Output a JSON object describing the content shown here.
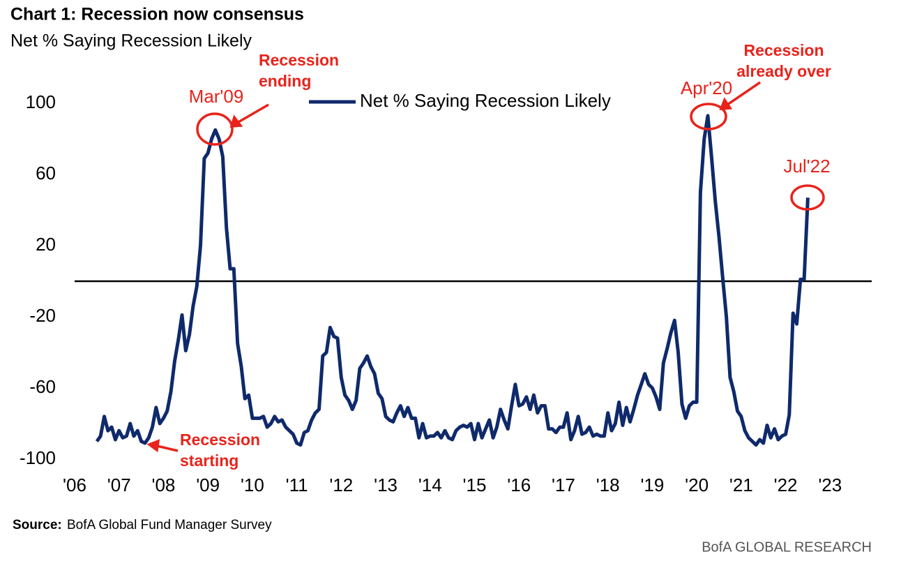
{
  "chart_data": {
    "type": "line",
    "title": "Chart 1: Recession now consensus",
    "subtitle": "Net % Saying Recession Likely",
    "source_label": "Source:",
    "source": "BofA Global Fund Manager Survey",
    "footer": "BofA GLOBAL RESEARCH",
    "xlim": [
      2006,
      2024
    ],
    "ylim": [
      -100,
      100
    ],
    "hline": 0,
    "xticks": [
      {
        "value": 2006,
        "label": "'06"
      },
      {
        "value": 2007,
        "label": "'07"
      },
      {
        "value": 2008,
        "label": "'08"
      },
      {
        "value": 2009,
        "label": "'09"
      },
      {
        "value": 2010,
        "label": "'10"
      },
      {
        "value": 2011,
        "label": "'11"
      },
      {
        "value": 2012,
        "label": "'12"
      },
      {
        "value": 2013,
        "label": "'13"
      },
      {
        "value": 2014,
        "label": "'14"
      },
      {
        "value": 2015,
        "label": "'15"
      },
      {
        "value": 2016,
        "label": "'16"
      },
      {
        "value": 2017,
        "label": "'17"
      },
      {
        "value": 2018,
        "label": "'18"
      },
      {
        "value": 2019,
        "label": "'19"
      },
      {
        "value": 2020,
        "label": "'20"
      },
      {
        "value": 2021,
        "label": "'21"
      },
      {
        "value": 2022,
        "label": "'22"
      },
      {
        "value": 2023,
        "label": "'23"
      }
    ],
    "yticks": [
      -100,
      -60,
      -20,
      20,
      60,
      100
    ],
    "x": [
      2006.5,
      2006.583,
      2006.667,
      2006.75,
      2006.833,
      2006.917,
      2007,
      2007.083,
      2007.167,
      2007.25,
      2007.333,
      2007.417,
      2007.5,
      2007.583,
      2007.667,
      2007.75,
      2007.833,
      2007.917,
      2008,
      2008.083,
      2008.167,
      2008.25,
      2008.333,
      2008.417,
      2008.5,
      2008.583,
      2008.667,
      2008.75,
      2008.833,
      2008.917,
      2009,
      2009.083,
      2009.167,
      2009.25,
      2009.333,
      2009.417,
      2009.5,
      2009.583,
      2009.667,
      2009.75,
      2009.833,
      2009.917,
      2010,
      2010.083,
      2010.167,
      2010.25,
      2010.333,
      2010.417,
      2010.5,
      2010.583,
      2010.667,
      2010.75,
      2010.833,
      2010.917,
      2011,
      2011.083,
      2011.167,
      2011.25,
      2011.333,
      2011.417,
      2011.5,
      2011.583,
      2011.667,
      2011.75,
      2011.833,
      2011.917,
      2012,
      2012.083,
      2012.167,
      2012.25,
      2012.333,
      2012.417,
      2012.5,
      2012.583,
      2012.667,
      2012.75,
      2012.833,
      2012.917,
      2013,
      2013.083,
      2013.167,
      2013.25,
      2013.333,
      2013.417,
      2013.5,
      2013.583,
      2013.667,
      2013.75,
      2013.833,
      2013.917,
      2014,
      2014.083,
      2014.167,
      2014.25,
      2014.333,
      2014.417,
      2014.5,
      2014.583,
      2014.667,
      2014.75,
      2014.833,
      2014.917,
      2015,
      2015.083,
      2015.167,
      2015.25,
      2015.333,
      2015.417,
      2015.5,
      2015.583,
      2015.667,
      2015.75,
      2015.833,
      2015.917,
      2016,
      2016.083,
      2016.167,
      2016.25,
      2016.333,
      2016.417,
      2016.5,
      2016.583,
      2016.667,
      2016.75,
      2016.833,
      2016.917,
      2017,
      2017.083,
      2017.167,
      2017.25,
      2017.333,
      2017.417,
      2017.5,
      2017.583,
      2017.667,
      2017.75,
      2017.833,
      2017.917,
      2018,
      2018.083,
      2018.167,
      2018.25,
      2018.333,
      2018.417,
      2018.5,
      2018.583,
      2018.667,
      2018.75,
      2018.833,
      2018.917,
      2019,
      2019.083,
      2019.167,
      2019.25,
      2019.333,
      2019.417,
      2019.5,
      2019.583,
      2019.667,
      2019.75,
      2019.833,
      2019.917,
      2020,
      2020.083,
      2020.167,
      2020.25,
      2020.333,
      2020.417,
      2020.5,
      2020.583,
      2020.667,
      2020.75,
      2020.833,
      2020.917,
      2021,
      2021.083,
      2021.167,
      2021.25,
      2021.333,
      2021.417,
      2021.5,
      2021.583,
      2021.667,
      2021.75,
      2021.833,
      2021.917,
      2022,
      2022.083,
      2022.167,
      2022.25,
      2022.333,
      2022.417,
      2022.5
    ],
    "series": [
      {
        "name": "Net % Saying Recession Likely",
        "color": "#0f2a6b",
        "values": [
          -90,
          -87,
          -76,
          -84,
          -82,
          -89,
          -84,
          -88,
          -87,
          -80,
          -87,
          -84,
          -90,
          -91,
          -88,
          -82,
          -71,
          -80,
          -77,
          -73,
          -62,
          -45,
          -33,
          -19,
          -39,
          -30,
          -14,
          -3,
          20,
          69,
          72,
          80,
          85,
          80,
          70,
          30,
          7,
          7,
          -35,
          -48,
          -66,
          -64,
          -77,
          -77,
          -77,
          -76,
          -82,
          -80,
          -76,
          -79,
          -78,
          -82,
          -84,
          -86,
          -91,
          -92,
          -85,
          -84,
          -78,
          -74,
          -72,
          -42,
          -40,
          -26,
          -31,
          -32,
          -54,
          -64,
          -67,
          -72,
          -67,
          -49,
          -46,
          -42,
          -48,
          -52,
          -63,
          -66,
          -76,
          -78,
          -79,
          -74,
          -70,
          -76,
          -71,
          -77,
          -77,
          -88,
          -80,
          -88,
          -87,
          -87,
          -85,
          -88,
          -84,
          -88,
          -89,
          -84,
          -82,
          -81,
          -82,
          -80,
          -89,
          -80,
          -88,
          -83,
          -78,
          -88,
          -82,
          -72,
          -78,
          -83,
          -70,
          -58,
          -70,
          -69,
          -65,
          -72,
          -64,
          -74,
          -70,
          -70,
          -83,
          -83,
          -85,
          -82,
          -82,
          -74,
          -89,
          -84,
          -76,
          -86,
          -85,
          -82,
          -87,
          -86,
          -87,
          -87,
          -74,
          -84,
          -80,
          -68,
          -81,
          -71,
          -79,
          -72,
          -64,
          -58,
          -52,
          -58,
          -60,
          -65,
          -72,
          -46,
          -38,
          -29,
          -22,
          -40,
          -69,
          -77,
          -70,
          -68,
          -68,
          50,
          80,
          93,
          70,
          45,
          25,
          2,
          -20,
          -54,
          -62,
          -73,
          -76,
          -84,
          -88,
          -90,
          -92,
          -89,
          -91,
          -81,
          -88,
          -83,
          -89,
          -87,
          -86,
          -75,
          -18,
          -24,
          1,
          1,
          47
        ]
      }
    ],
    "annotations": [
      {
        "text": "Mar'09"
      },
      {
        "lines": [
          "Recession",
          "ending"
        ]
      },
      {
        "text": "Apr'20"
      },
      {
        "lines": [
          "Recession",
          "already over"
        ]
      },
      {
        "text": "Jul'22"
      },
      {
        "lines": [
          "Recession",
          "starting"
        ]
      }
    ]
  }
}
